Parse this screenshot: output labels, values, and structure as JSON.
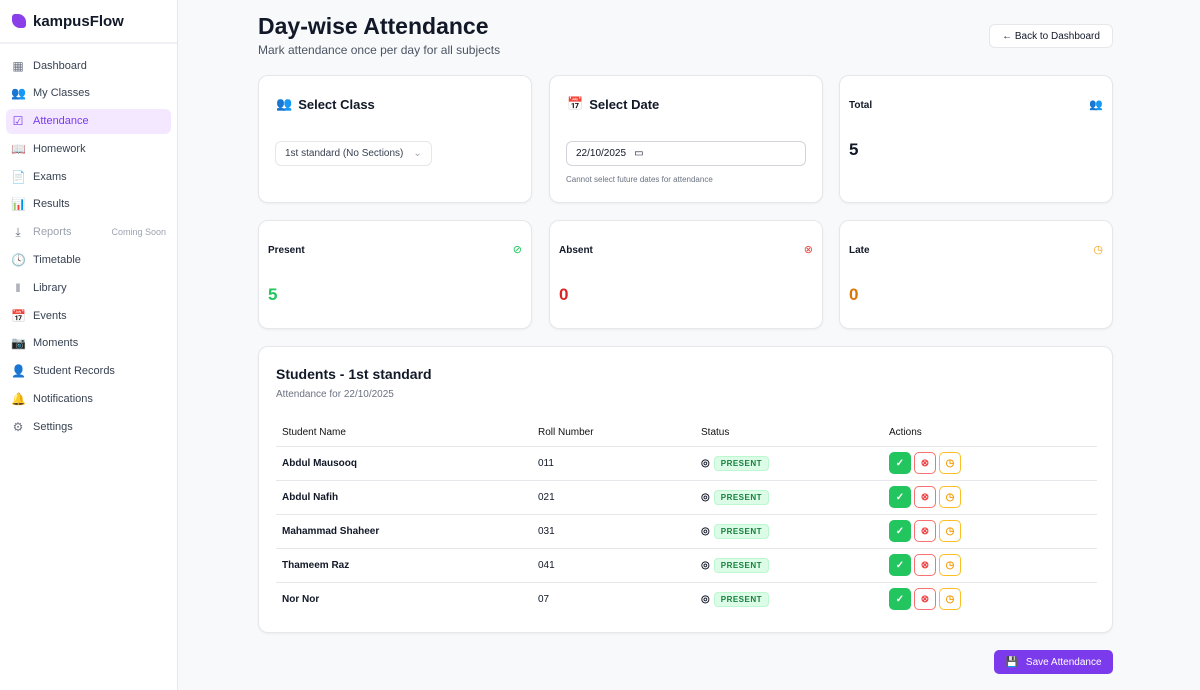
{
  "brand": "kampusFlow",
  "nav": [
    {
      "label": "Dashboard",
      "icon": "▦"
    },
    {
      "label": "My Classes",
      "icon": "👥"
    },
    {
      "label": "Attendance",
      "icon": "☑",
      "active": true
    },
    {
      "label": "Homework",
      "icon": "📖"
    },
    {
      "label": "Exams",
      "icon": "📄"
    },
    {
      "label": "Results",
      "icon": "📊"
    },
    {
      "label": "Reports",
      "icon": "⤓",
      "badge": "Coming Soon",
      "disabled": true
    },
    {
      "label": "Timetable",
      "icon": "🕓"
    },
    {
      "label": "Library",
      "icon": "‖"
    },
    {
      "label": "Events",
      "icon": "📅"
    },
    {
      "label": "Moments",
      "icon": "📷"
    },
    {
      "label": "Student Records",
      "icon": "👤"
    },
    {
      "label": "Notifications",
      "icon": "🔔"
    },
    {
      "label": "Settings",
      "icon": "⚙"
    }
  ],
  "header": {
    "title": "Day-wise Attendance",
    "subtitle": "Mark attendance once per day for all subjects",
    "back": "← Back to Dashboard"
  },
  "select_class": {
    "title": "Select Class",
    "value": "1st standard (No Sections)"
  },
  "select_date": {
    "title": "Select Date",
    "value": "22/10/2025",
    "hint": "Cannot select future dates for attendance"
  },
  "stats": {
    "total": {
      "label": "Total",
      "value": "5"
    },
    "present": {
      "label": "Present",
      "value": "5",
      "color": "#22c55e"
    },
    "absent": {
      "label": "Absent",
      "value": "0",
      "color": "#dc2626"
    },
    "late": {
      "label": "Late",
      "value": "0",
      "color": "#d97706"
    }
  },
  "students": {
    "title": "Students - 1st standard",
    "subtitle": "Attendance for 22/10/2025",
    "columns": [
      "Student Name",
      "Roll Number",
      "Status",
      "Actions"
    ],
    "rows": [
      {
        "name": "Abdul Mausooq",
        "roll": "011",
        "status": "PRESENT"
      },
      {
        "name": "Abdul Nafih",
        "roll": "021",
        "status": "PRESENT"
      },
      {
        "name": "Mahammad Shaheer",
        "roll": "031",
        "status": "PRESENT"
      },
      {
        "name": "Thameem Raz",
        "roll": "041",
        "status": "PRESENT"
      },
      {
        "name": "Nor Nor",
        "roll": "07",
        "status": "PRESENT"
      }
    ]
  },
  "save": "Save Attendance"
}
